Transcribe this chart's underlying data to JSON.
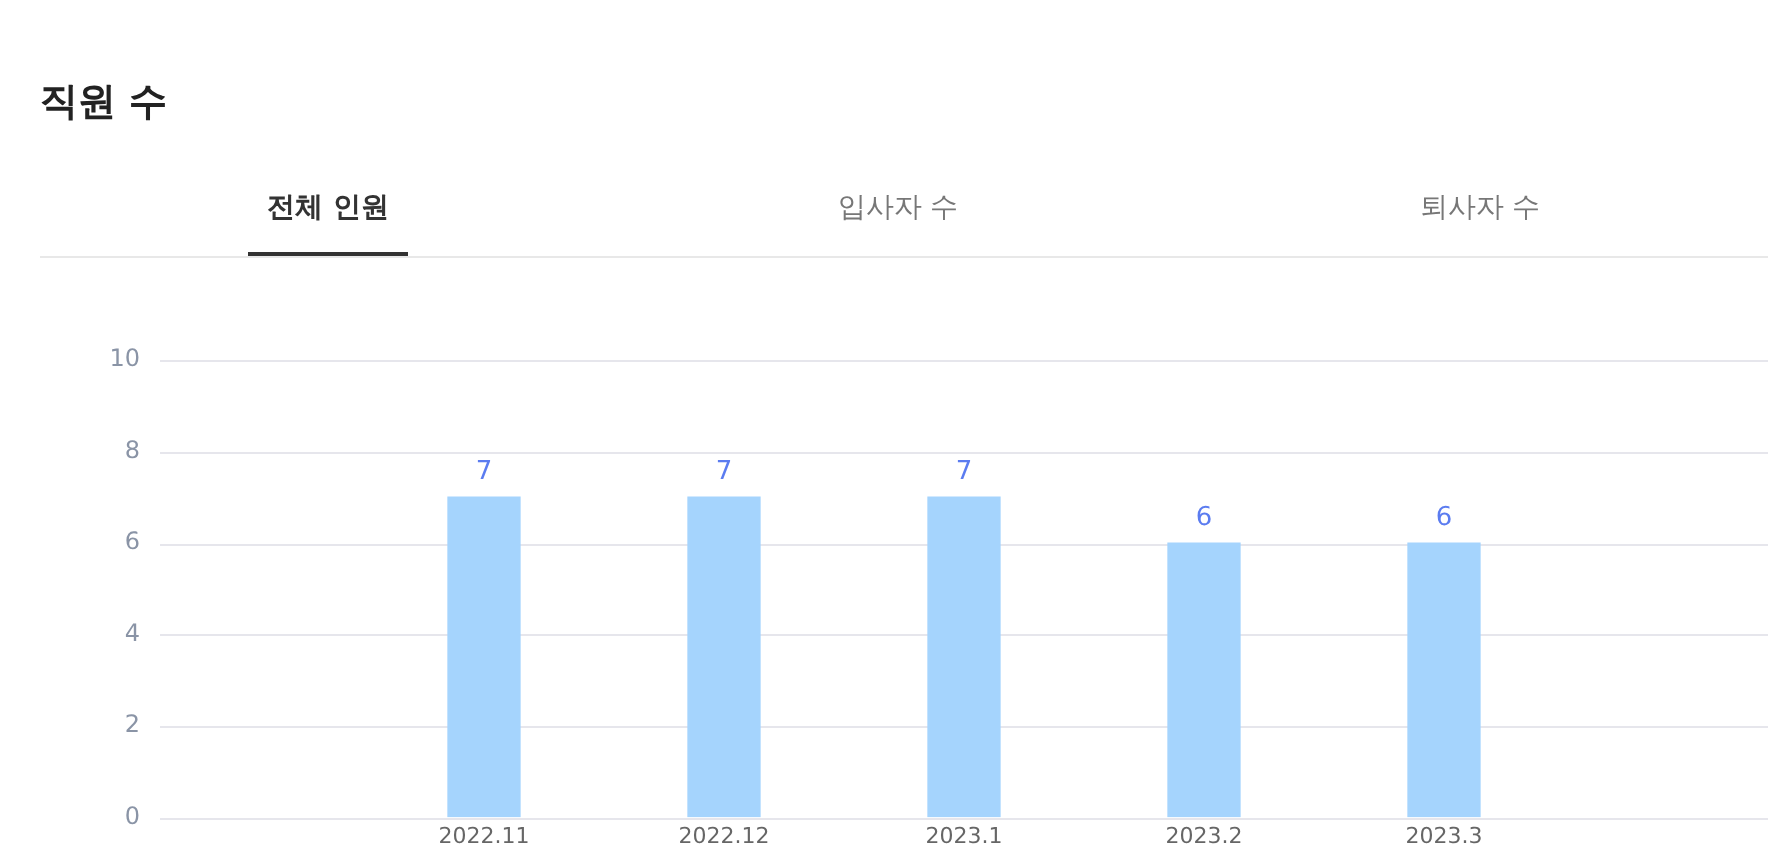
{
  "chart_data": {
    "type": "bar",
    "title": "직원 수",
    "annotations": [
      "전체 인원",
      "입사자 수",
      "퇴사자 수"
    ],
    "categories": [
      "2022.11",
      "2022.12",
      "2023.1",
      "2023.2",
      "2023.3"
    ],
    "values": [
      7,
      7,
      7,
      6,
      6
    ],
    "color": "#a5d4fd",
    "ylim": [
      0,
      10
    ],
    "yticks": [
      0,
      2,
      4,
      6,
      8,
      10
    ],
    "grid": "y",
    "data_labels": true
  }
}
